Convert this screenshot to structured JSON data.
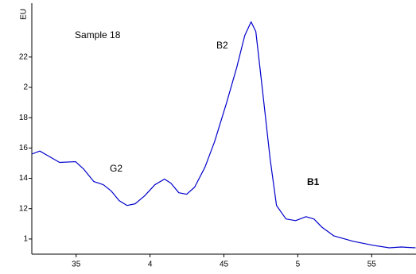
{
  "chart_data": {
    "type": "line",
    "ylabel": "EU",
    "annotations": [
      "Sample 18",
      "B2",
      "G2",
      "B1"
    ],
    "x": [
      3.2,
      3.254,
      3.307,
      3.388,
      3.496,
      3.549,
      3.619,
      3.684,
      3.738,
      3.791,
      3.845,
      3.899,
      3.963,
      4.033,
      4.098,
      4.141,
      4.195,
      4.248,
      4.302,
      4.372,
      4.437,
      4.517,
      4.587,
      4.641,
      4.684,
      4.716,
      4.759,
      4.813,
      4.856,
      4.92,
      4.985,
      5.055,
      5.109,
      5.162,
      5.243,
      5.377,
      5.512,
      5.619,
      5.7,
      5.797
    ],
    "series": [
      {
        "color": "#0000cc",
        "values": [
          1.56,
          1.58,
          1.55,
          1.505,
          1.51,
          1.463,
          1.379,
          1.358,
          1.316,
          1.253,
          1.221,
          1.232,
          1.284,
          1.358,
          1.395,
          1.368,
          1.305,
          1.295,
          1.342,
          1.474,
          1.642,
          1.895,
          2.132,
          2.342,
          2.432,
          2.368,
          2.0,
          1.526,
          1.221,
          1.132,
          1.121,
          1.147,
          1.132,
          1.079,
          1.021,
          0.984,
          0.958,
          0.942,
          0.947,
          0.942
        ]
      }
    ],
    "xlim": [
      3.2,
      5.8
    ],
    "ylim": [
      0.9,
      2.55
    ],
    "xticks": [
      {
        "value": 3.5,
        "label": "35"
      },
      4,
      {
        "value": 4.5,
        "label": "45"
      },
      5,
      {
        "value": 5.5,
        "label": "55"
      }
    ],
    "yticks": [
      1,
      {
        "value": 1.2,
        "label": "12"
      },
      {
        "value": 1.4,
        "label": "14"
      },
      {
        "value": 1.6,
        "label": "16"
      },
      {
        "value": 1.8,
        "label": "18"
      },
      2,
      {
        "value": 2.2,
        "label": "22"
      }
    ]
  }
}
